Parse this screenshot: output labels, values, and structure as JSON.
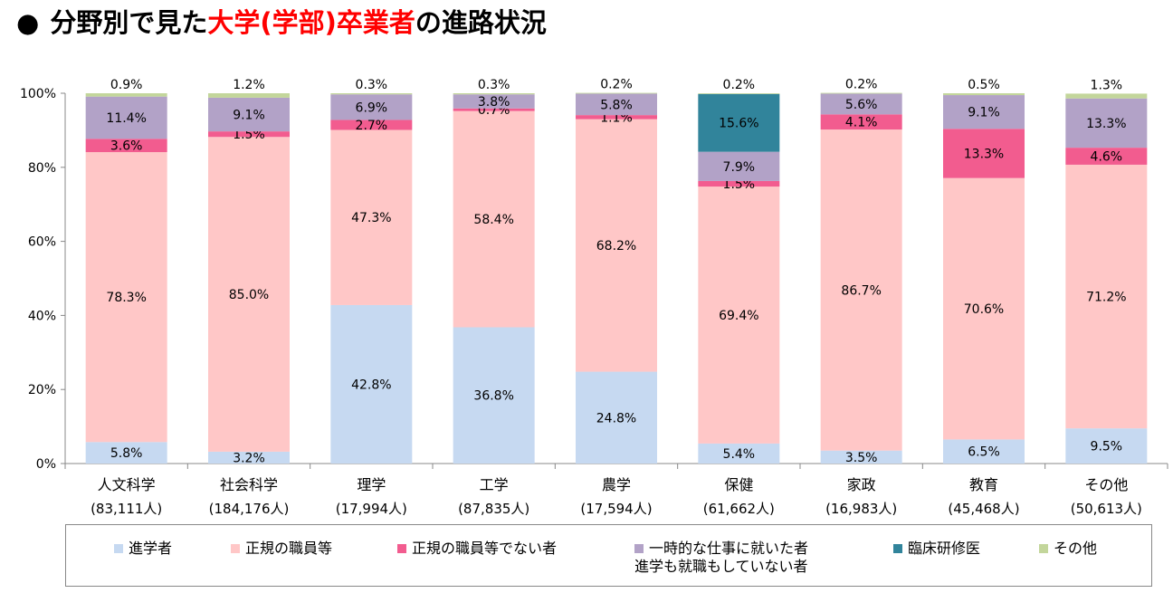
{
  "title": {
    "parts": [
      {
        "text": "分野別で見た",
        "highlight": false
      },
      {
        "text": "大学(学部)卒業者",
        "highlight": true
      },
      {
        "text": "の進路状況",
        "highlight": false
      }
    ],
    "highlight_color": "#ff0000"
  },
  "chart_data": {
    "type": "bar",
    "stacked": true,
    "title": "分野別で見た大学(学部)卒業者の進路状況",
    "ylim": [
      0,
      100
    ],
    "y_ticks": [
      "0%",
      "20%",
      "40%",
      "60%",
      "80%",
      "100%"
    ],
    "grid": false,
    "legend_position": "bottom",
    "categories": [
      {
        "name": "人文科学",
        "count": "(83,111人)"
      },
      {
        "name": "社会科学",
        "count": "(184,176人)"
      },
      {
        "name": "理学",
        "count": "(17,994人)"
      },
      {
        "name": "工学",
        "count": "(87,835人)"
      },
      {
        "name": "農学",
        "count": "(17,594人)"
      },
      {
        "name": "保健",
        "count": "(61,662人)"
      },
      {
        "name": "家政",
        "count": "(16,983人)"
      },
      {
        "name": "教育",
        "count": "(45,468人)"
      },
      {
        "name": "その他",
        "count": "(50,613人)"
      }
    ],
    "series": [
      {
        "name": "進学者",
        "color": "#c6d9f1",
        "values": [
          5.8,
          3.2,
          42.8,
          36.8,
          24.8,
          5.4,
          3.5,
          6.5,
          9.5
        ],
        "labels": [
          "5.8%",
          "3.2%",
          "42.8%",
          "36.8%",
          "24.8%",
          "5.4%",
          "3.5%",
          "6.5%",
          "9.5%"
        ]
      },
      {
        "name": "正規の職員等",
        "color": "#ffc7c7",
        "values": [
          78.3,
          85.0,
          47.3,
          58.4,
          68.2,
          69.4,
          86.7,
          70.6,
          71.2
        ],
        "labels": [
          "78.3%",
          "85.0%",
          "47.3%",
          "58.4%",
          "68.2%",
          "69.4%",
          "86.7%",
          "70.6%",
          "71.2%"
        ]
      },
      {
        "name": "正規の職員等でない者",
        "color": "#f25c8f",
        "values": [
          3.6,
          1.5,
          2.7,
          0.7,
          1.1,
          1.5,
          4.1,
          13.3,
          4.6
        ],
        "labels": [
          "3.6%",
          "1.5%",
          "2.7%",
          "0.7%",
          "1.1%",
          "1.5%",
          "4.1%",
          "13.3%",
          "4.6%"
        ]
      },
      {
        "name": "一時的な仕事に就いた者 進学も就職もしていない者",
        "color": "#b2a2c7",
        "legend_lines": [
          "一時的な仕事に就いた者",
          "進学も就職もしていない者"
        ],
        "values": [
          11.4,
          9.1,
          6.9,
          3.8,
          5.8,
          7.9,
          5.6,
          9.1,
          13.3
        ],
        "labels": [
          "11.4%",
          "9.1%",
          "6.9%",
          "3.8%",
          "5.8%",
          "7.9%",
          "5.6%",
          "9.1%",
          "13.3%"
        ]
      },
      {
        "name": "臨床研修医",
        "color": "#31849b",
        "values": [
          0,
          0,
          0,
          0,
          0,
          15.6,
          0,
          0,
          0
        ],
        "labels": [
          "",
          "",
          "",
          "",
          "",
          "15.6%",
          "",
          "",
          ""
        ]
      },
      {
        "name": "その他",
        "color": "#c3d69b",
        "values": [
          0.9,
          1.2,
          0.3,
          0.3,
          0.2,
          0.2,
          0.2,
          0.5,
          1.3
        ],
        "labels": [
          "0.9%",
          "1.2%",
          "0.3%",
          "0.3%",
          "0.2%",
          "0.2%",
          "0.2%",
          "0.5%",
          "1.3%"
        ]
      }
    ]
  }
}
